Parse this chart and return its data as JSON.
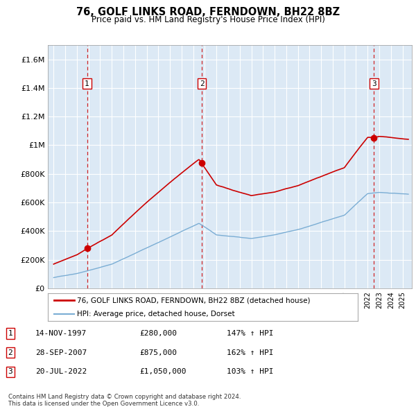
{
  "title": "76, GOLF LINKS ROAD, FERNDOWN, BH22 8BZ",
  "subtitle": "Price paid vs. HM Land Registry's House Price Index (HPI)",
  "background_color": "#dce9f5",
  "plot_bg_color": "#dce9f5",
  "grid_color": "#ffffff",
  "sale_years": [
    1997.87,
    2007.74,
    2022.55
  ],
  "sale_prices": [
    280000,
    875000,
    1050000
  ],
  "sale_labels": [
    "1",
    "2",
    "3"
  ],
  "red_line_color": "#cc0000",
  "blue_line_color": "#7aadd4",
  "dashed_line_color": "#cc0000",
  "legend_entries": [
    "76, GOLF LINKS ROAD, FERNDOWN, BH22 8BZ (detached house)",
    "HPI: Average price, detached house, Dorset"
  ],
  "table_data": [
    [
      "1",
      "14-NOV-1997",
      "£280,000",
      "147% ↑ HPI"
    ],
    [
      "2",
      "28-SEP-2007",
      "£875,000",
      "162% ↑ HPI"
    ],
    [
      "3",
      "20-JUL-2022",
      "£1,050,000",
      "103% ↑ HPI"
    ]
  ],
  "footer": "Contains HM Land Registry data © Crown copyright and database right 2024.\nThis data is licensed under the Open Government Licence v3.0.",
  "ylim": [
    0,
    1700000
  ],
  "yticks": [
    0,
    200000,
    400000,
    600000,
    800000,
    1000000,
    1200000,
    1400000,
    1600000
  ],
  "ytick_labels": [
    "£0",
    "£200K",
    "£400K",
    "£600K",
    "£800K",
    "£1M",
    "£1.2M",
    "£1.4M",
    "£1.6M"
  ],
  "xlim_start": 1994.5,
  "xlim_end": 2025.8
}
